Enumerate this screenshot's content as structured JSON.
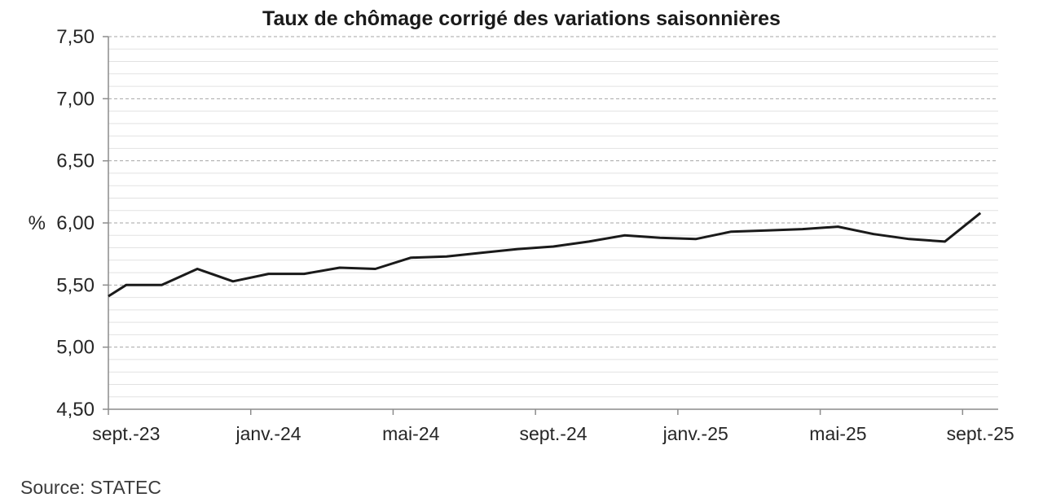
{
  "page": {
    "source_note": "Source: STATEC"
  },
  "chart_data": {
    "type": "line",
    "title": "Taux de chômage corrigé des variations saisonnières",
    "xlabel": "",
    "ylabel": "%",
    "ylim": [
      4.5,
      7.5
    ],
    "y_major_step": 0.5,
    "y_minor_step": 0.1,
    "grid": "on",
    "legend_position": "none",
    "y_tick_labels_top_to_bottom": [
      "7,50",
      "7,00",
      "6,50",
      "6,00",
      "5,50",
      "5,00",
      "4,50"
    ],
    "x_tick_labels_visible": [
      "sept.-23",
      "janv.-24",
      "mai-24",
      "sept.-24",
      "janv.-25",
      "mai-25",
      "sept.-25"
    ],
    "x_label_every_n_categories": 4,
    "categories": [
      "sept.-23",
      "oct.-23",
      "nov.-23",
      "déc.-23",
      "janv.-24",
      "févr.-24",
      "mars-24",
      "avr.-24",
      "mai-24",
      "juin-24",
      "juil.-24",
      "août-24",
      "sept.-24",
      "oct.-24",
      "nov.-24",
      "déc.-24",
      "janv.-25",
      "févr.-25",
      "mars-25",
      "avr.-25",
      "mai-25",
      "juin-25",
      "juil.-25",
      "août-25",
      "sept.-25"
    ],
    "values": [
      5.5,
      5.5,
      5.63,
      5.53,
      5.59,
      5.59,
      5.64,
      5.63,
      5.72,
      5.73,
      5.76,
      5.79,
      5.81,
      5.85,
      5.9,
      5.88,
      5.87,
      5.93,
      5.94,
      5.95,
      5.97,
      5.91,
      5.87,
      5.85,
      6.08
    ],
    "lead_in_value_at_left_axis": 5.41,
    "style": {
      "line_color": "#1a1a1a",
      "line_width": 3,
      "major_grid_color": "#a6a6a6",
      "minor_grid_color": "#e2e2e2",
      "axis_color": "#8c8c8c",
      "text_color": "#262626",
      "background": "#ffffff"
    }
  }
}
